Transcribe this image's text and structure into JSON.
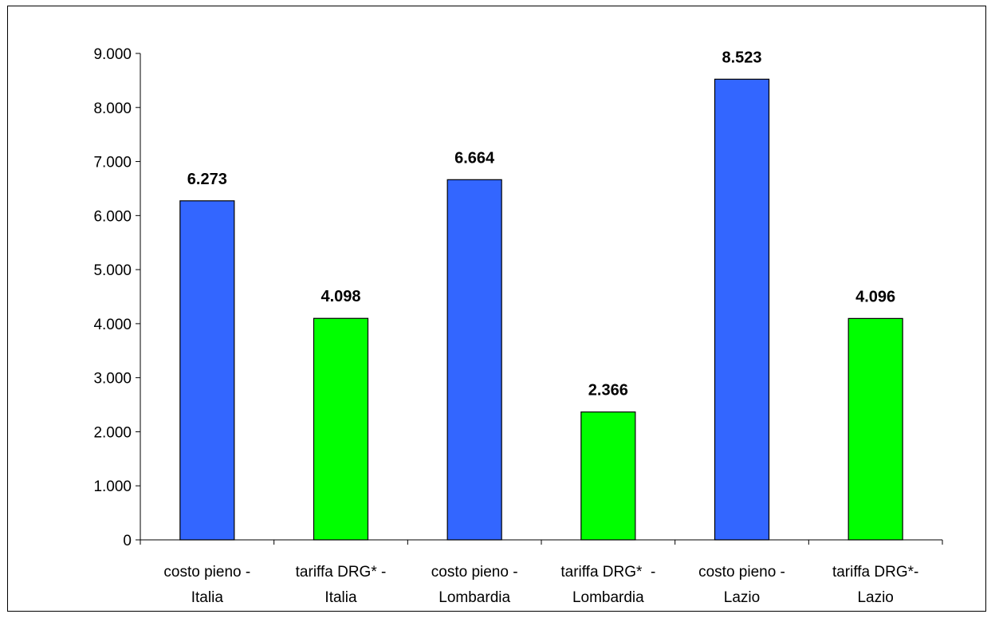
{
  "colors": {
    "costo_pieno": "#3366ff",
    "tariffa": "#00ff00",
    "outline": "#000000"
  },
  "chart_data": {
    "type": "bar",
    "title": "",
    "xlabel": "",
    "ylabel": "",
    "ylim": [
      0,
      9000
    ],
    "yticks": [
      {
        "value": 0,
        "label": "0"
      },
      {
        "value": 1000,
        "label": "1.000"
      },
      {
        "value": 2000,
        "label": "2.000"
      },
      {
        "value": 3000,
        "label": "3.000"
      },
      {
        "value": 4000,
        "label": "4.000"
      },
      {
        "value": 5000,
        "label": "5.000"
      },
      {
        "value": 6000,
        "label": "6.000"
      },
      {
        "value": 7000,
        "label": "7.000"
      },
      {
        "value": 8000,
        "label": "8.000"
      },
      {
        "value": 9000,
        "label": "9.000"
      }
    ],
    "grid": false,
    "legend": "none",
    "bars": [
      {
        "label_lines": [
          "costo pieno -",
          "Italia"
        ],
        "value": 6273,
        "value_label": "6.273",
        "color": "#3366ff"
      },
      {
        "label_lines": [
          "tariffa DRG* -",
          "Italia"
        ],
        "value": 4098,
        "value_label": "4.098",
        "color": "#00ff00"
      },
      {
        "label_lines": [
          "costo pieno -",
          "Lombardia"
        ],
        "value": 6664,
        "value_label": "6.664",
        "color": "#3366ff"
      },
      {
        "label_lines": [
          "tariffa DRG*  -",
          "Lombardia"
        ],
        "value": 2366,
        "value_label": "2.366",
        "color": "#00ff00"
      },
      {
        "label_lines": [
          "costo pieno -",
          "Lazio"
        ],
        "value": 8523,
        "value_label": "8.523",
        "color": "#3366ff"
      },
      {
        "label_lines": [
          "tariffa DRG*-",
          "Lazio"
        ],
        "value": 4096,
        "value_label": "4.096",
        "color": "#00ff00"
      }
    ]
  }
}
